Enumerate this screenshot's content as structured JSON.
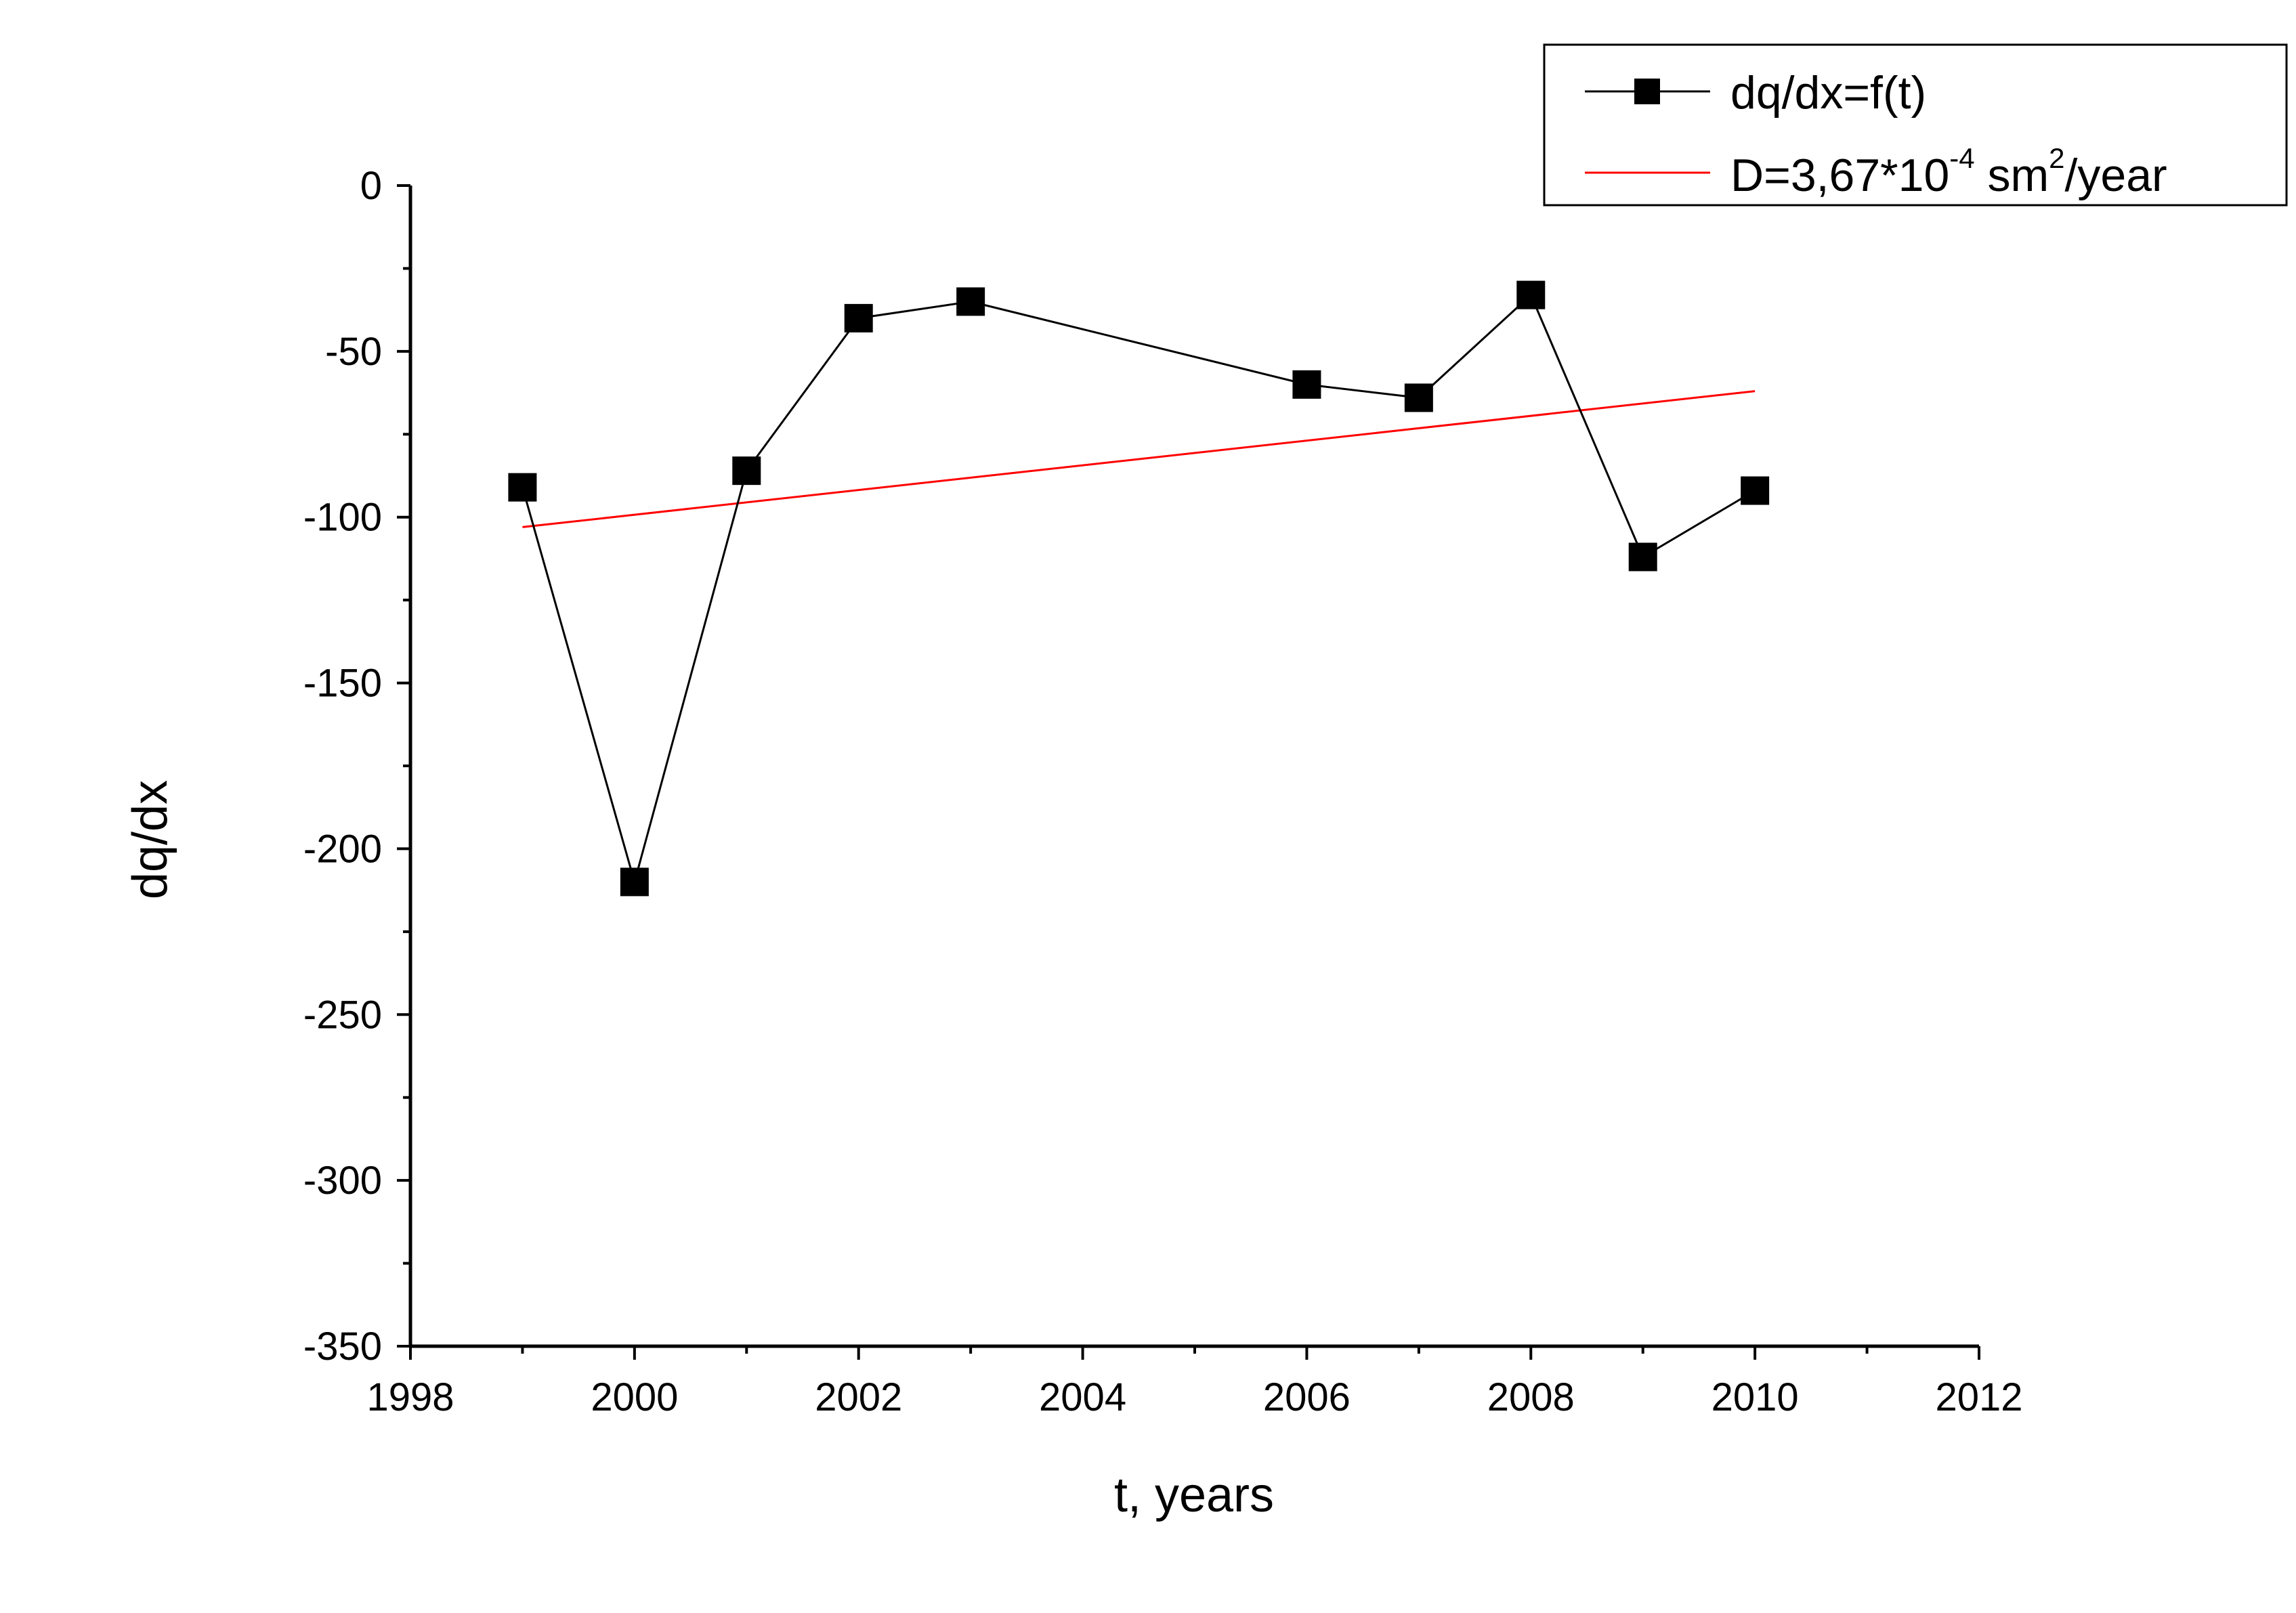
{
  "chart_data": {
    "type": "line",
    "xlabel": "t, years",
    "ylabel": "dq/dx",
    "xlim": [
      1998,
      2012
    ],
    "ylim": [
      -350,
      0
    ],
    "x_ticks": [
      "1998",
      "2000",
      "2002",
      "2004",
      "2006",
      "2008",
      "2010",
      "2012"
    ],
    "y_ticks": [
      "0",
      "-50",
      "-100",
      "-150",
      "-200",
      "-250",
      "-300",
      "-350"
    ],
    "grid": false,
    "legend_position": "top-right",
    "series": [
      {
        "name": "dq/dx=f(t)",
        "color": "#000000",
        "marker": "square",
        "x": [
          1999,
          2000,
          2001,
          2002,
          2003,
          2006,
          2007,
          2008,
          2009,
          2010
        ],
        "y": [
          -91,
          -210,
          -86,
          -40,
          -35,
          -60,
          -64,
          -33,
          -112,
          -92
        ]
      },
      {
        "name": "D=3,67*10-4 sm2/year",
        "name_parts": {
          "base": "D=3,67*10",
          "exp1": "-4",
          "mid": " sm",
          "exp2": "2",
          "tail": "/year"
        },
        "color": "#ff0000",
        "marker": "none",
        "x": [
          1999,
          2010
        ],
        "y": [
          -103,
          -62
        ]
      }
    ]
  }
}
